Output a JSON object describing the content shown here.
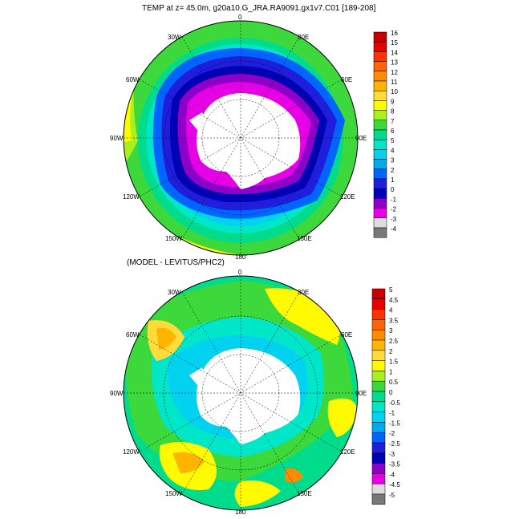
{
  "top_panel": {
    "title": "TEMP at z=  45.0m, g20a10.G_JRA.RA9091.gx1v7.C01 [189-208]",
    "lon_labels": [
      "0",
      "30E",
      "60E",
      "90E",
      "120E",
      "150E",
      "180",
      "150W",
      "120W",
      "90W",
      "60W",
      "30W"
    ],
    "colorbar": {
      "labels": [
        "16",
        "15",
        "14",
        "13",
        "12",
        "11",
        "10",
        "9",
        "8",
        "7",
        "6",
        "5",
        "4",
        "3",
        "2",
        "1",
        "0",
        "-1",
        "-2",
        "-3",
        "-4"
      ],
      "colors": [
        "#c60000",
        "#e80000",
        "#ff3200",
        "#ff6400",
        "#ff8c00",
        "#ffb400",
        "#ffdc3c",
        "#fffa00",
        "#aaf01e",
        "#3cd83c",
        "#00dc8c",
        "#00e6c8",
        "#00d2f0",
        "#00aaf0",
        "#0064ff",
        "#1e1edc",
        "#0000b4",
        "#8c00c8",
        "#e600e6",
        "#dcdcdc",
        "#787878"
      ]
    }
  },
  "bottom_panel": {
    "title": "(MODEL - LEVITUS/PHC2)",
    "lon_labels": [
      "0",
      "30E",
      "60E",
      "90E",
      "120E",
      "150E",
      "180",
      "150W",
      "120W",
      "90W",
      "60W",
      "30W"
    ],
    "colorbar": {
      "labels": [
        "5",
        "4.5",
        "4",
        "3.5",
        "3",
        "2.5",
        "2",
        "1.5",
        "1",
        "0.5",
        "0",
        "-0.5",
        "-1",
        "-1.5",
        "-2",
        "-2.5",
        "-3",
        "-3.5",
        "-4",
        "-4.5",
        "-5"
      ],
      "colors": [
        "#c60000",
        "#e80000",
        "#ff3200",
        "#ff6400",
        "#ff8c00",
        "#ffb400",
        "#ffdc3c",
        "#fffa00",
        "#aaf01e",
        "#3cd83c",
        "#00dc8c",
        "#00e6c8",
        "#00d2f0",
        "#00aaf0",
        "#0064ff",
        "#1e1edc",
        "#0000b4",
        "#8c00c8",
        "#e600e6",
        "#dcdcdc",
        "#787878"
      ]
    }
  }
}
